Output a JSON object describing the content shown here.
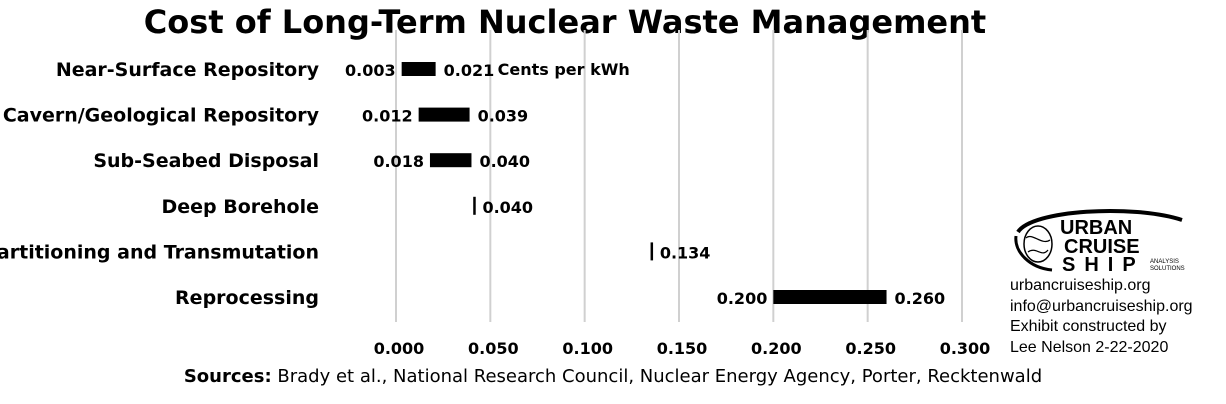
{
  "chart_data": {
    "type": "bar",
    "title": "Cost of Long-Term Nuclear Waste Management",
    "unit_label": "Cents per kWh",
    "categories": [
      "Near-Surface Repository",
      "Cavern/Geological Repository",
      "Sub-Seabed Disposal",
      "Deep Borehole",
      "Partitioning and Transmutation",
      "Reprocessing"
    ],
    "ranges": [
      {
        "category": "Near-Surface Repository",
        "low": 0.003,
        "high": 0.021,
        "low_label": "0.003",
        "high_label": "0.021"
      },
      {
        "category": "Cavern/Geological Repository",
        "low": 0.012,
        "high": 0.039,
        "low_label": "0.012",
        "high_label": "0.039"
      },
      {
        "category": "Sub-Seabed Disposal",
        "low": 0.018,
        "high": 0.04,
        "low_label": "0.018",
        "high_label": "0.040"
      },
      {
        "category": "Deep Borehole",
        "low": 0.04,
        "high": 0.04,
        "low_label": "",
        "high_label": "0.040"
      },
      {
        "category": "Partitioning and Transmutation",
        "low": 0.134,
        "high": 0.134,
        "low_label": "",
        "high_label": "0.134"
      },
      {
        "category": "Reprocessing",
        "low": 0.2,
        "high": 0.26,
        "low_label": "0.200",
        "high_label": "0.260"
      }
    ],
    "xlim": [
      0,
      0.3
    ],
    "xticks": [
      0,
      0.05,
      0.1,
      0.15,
      0.2,
      0.25,
      0.3
    ],
    "xtick_labels": [
      "0.000",
      "0.050",
      "0.100",
      "0.150",
      "0.200",
      "0.250",
      "0.300"
    ],
    "grid": "vertical",
    "bar_color": "#000000",
    "grid_color": "#d0d0d0"
  },
  "sources": {
    "label": "Sources:",
    "text": "Brady et al., National Research Council, Nuclear Energy Agency, Porter, Recktenwald"
  },
  "logo": {
    "line1": "URBAN",
    "line2": "CRUISE",
    "line3": "SHIP",
    "tag1": "ANALYSIS",
    "tag2": "SOLUTIONS"
  },
  "credits": {
    "website": "urbancruiseship.org",
    "email": "info@urbancruiseship.org",
    "line3": "Exhibit constructed by",
    "line4": "Lee Nelson 2-22-2020"
  }
}
